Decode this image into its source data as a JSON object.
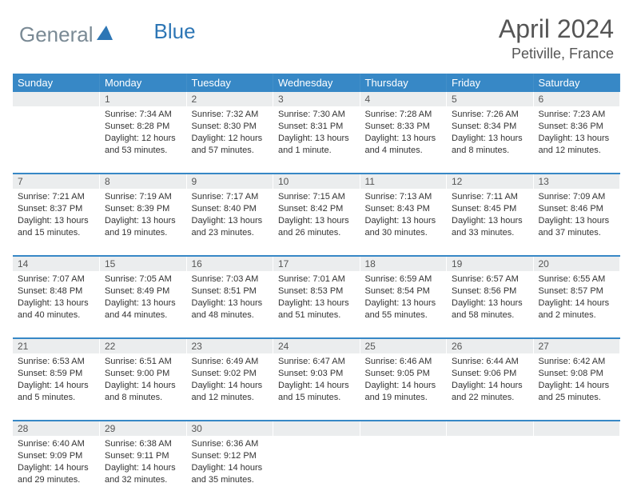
{
  "logo": {
    "text_gray": "General",
    "text_blue": "Blue"
  },
  "title": "April 2024",
  "location": "Petiville, France",
  "colors": {
    "header_bg": "#3788c6",
    "header_text": "#ffffff",
    "daynum_bg": "#ebedee",
    "daynum_text": "#555555",
    "body_text": "#333333",
    "logo_gray": "#7a8a95",
    "logo_blue": "#2d76b5"
  },
  "day_headers": [
    "Sunday",
    "Monday",
    "Tuesday",
    "Wednesday",
    "Thursday",
    "Friday",
    "Saturday"
  ],
  "weeks": [
    {
      "nums": [
        "",
        "1",
        "2",
        "3",
        "4",
        "5",
        "6"
      ],
      "cells": [
        "",
        "Sunrise: 7:34 AM\nSunset: 8:28 PM\nDaylight: 12 hours and 53 minutes.",
        "Sunrise: 7:32 AM\nSunset: 8:30 PM\nDaylight: 12 hours and 57 minutes.",
        "Sunrise: 7:30 AM\nSunset: 8:31 PM\nDaylight: 13 hours and 1 minute.",
        "Sunrise: 7:28 AM\nSunset: 8:33 PM\nDaylight: 13 hours and 4 minutes.",
        "Sunrise: 7:26 AM\nSunset: 8:34 PM\nDaylight: 13 hours and 8 minutes.",
        "Sunrise: 7:23 AM\nSunset: 8:36 PM\nDaylight: 13 hours and 12 minutes."
      ]
    },
    {
      "nums": [
        "7",
        "8",
        "9",
        "10",
        "11",
        "12",
        "13"
      ],
      "cells": [
        "Sunrise: 7:21 AM\nSunset: 8:37 PM\nDaylight: 13 hours and 15 minutes.",
        "Sunrise: 7:19 AM\nSunset: 8:39 PM\nDaylight: 13 hours and 19 minutes.",
        "Sunrise: 7:17 AM\nSunset: 8:40 PM\nDaylight: 13 hours and 23 minutes.",
        "Sunrise: 7:15 AM\nSunset: 8:42 PM\nDaylight: 13 hours and 26 minutes.",
        "Sunrise: 7:13 AM\nSunset: 8:43 PM\nDaylight: 13 hours and 30 minutes.",
        "Sunrise: 7:11 AM\nSunset: 8:45 PM\nDaylight: 13 hours and 33 minutes.",
        "Sunrise: 7:09 AM\nSunset: 8:46 PM\nDaylight: 13 hours and 37 minutes."
      ]
    },
    {
      "nums": [
        "14",
        "15",
        "16",
        "17",
        "18",
        "19",
        "20"
      ],
      "cells": [
        "Sunrise: 7:07 AM\nSunset: 8:48 PM\nDaylight: 13 hours and 40 minutes.",
        "Sunrise: 7:05 AM\nSunset: 8:49 PM\nDaylight: 13 hours and 44 minutes.",
        "Sunrise: 7:03 AM\nSunset: 8:51 PM\nDaylight: 13 hours and 48 minutes.",
        "Sunrise: 7:01 AM\nSunset: 8:53 PM\nDaylight: 13 hours and 51 minutes.",
        "Sunrise: 6:59 AM\nSunset: 8:54 PM\nDaylight: 13 hours and 55 minutes.",
        "Sunrise: 6:57 AM\nSunset: 8:56 PM\nDaylight: 13 hours and 58 minutes.",
        "Sunrise: 6:55 AM\nSunset: 8:57 PM\nDaylight: 14 hours and 2 minutes."
      ]
    },
    {
      "nums": [
        "21",
        "22",
        "23",
        "24",
        "25",
        "26",
        "27"
      ],
      "cells": [
        "Sunrise: 6:53 AM\nSunset: 8:59 PM\nDaylight: 14 hours and 5 minutes.",
        "Sunrise: 6:51 AM\nSunset: 9:00 PM\nDaylight: 14 hours and 8 minutes.",
        "Sunrise: 6:49 AM\nSunset: 9:02 PM\nDaylight: 14 hours and 12 minutes.",
        "Sunrise: 6:47 AM\nSunset: 9:03 PM\nDaylight: 14 hours and 15 minutes.",
        "Sunrise: 6:46 AM\nSunset: 9:05 PM\nDaylight: 14 hours and 19 minutes.",
        "Sunrise: 6:44 AM\nSunset: 9:06 PM\nDaylight: 14 hours and 22 minutes.",
        "Sunrise: 6:42 AM\nSunset: 9:08 PM\nDaylight: 14 hours and 25 minutes."
      ]
    },
    {
      "nums": [
        "28",
        "29",
        "30",
        "",
        "",
        "",
        ""
      ],
      "cells": [
        "Sunrise: 6:40 AM\nSunset: 9:09 PM\nDaylight: 14 hours and 29 minutes.",
        "Sunrise: 6:38 AM\nSunset: 9:11 PM\nDaylight: 14 hours and 32 minutes.",
        "Sunrise: 6:36 AM\nSunset: 9:12 PM\nDaylight: 14 hours and 35 minutes.",
        "",
        "",
        "",
        ""
      ]
    }
  ]
}
